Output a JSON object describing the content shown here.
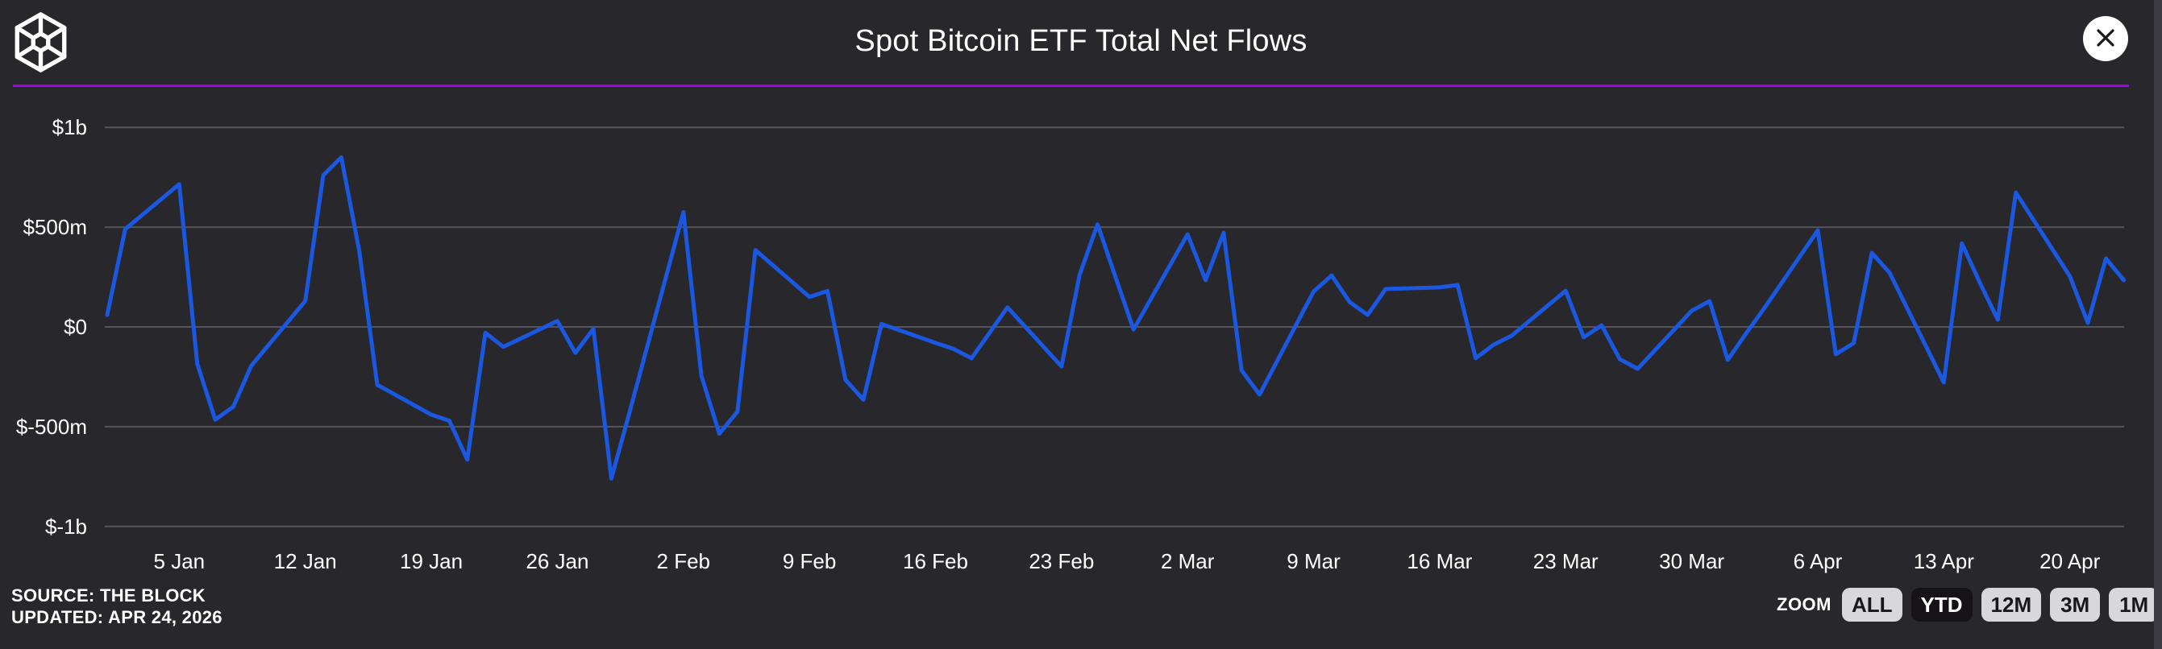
{
  "header": {
    "title": "Spot Bitcoin ETF Total Net Flows",
    "logo_icon": "the-block-cube-logo",
    "close_icon": "x"
  },
  "footer": {
    "source_line1": "SOURCE: THE BLOCK",
    "source_line2": "UPDATED: APR 24, 2026"
  },
  "zoom_controls": {
    "label": "ZOOM",
    "options": [
      {
        "label": "ALL",
        "active": false
      },
      {
        "label": "YTD",
        "active": true
      },
      {
        "label": "12M",
        "active": false
      },
      {
        "label": "3M",
        "active": false
      },
      {
        "label": "1M",
        "active": false
      }
    ]
  },
  "colors": {
    "background": "#28272b",
    "line": "#1b58e2",
    "gridline": "#56555b",
    "divider_purple": "#a403f2",
    "button_bg": "#d8d7db",
    "button_active_bg": "#151318",
    "text": "#ffffff"
  },
  "chart_data": {
    "type": "line",
    "title": "Spot Bitcoin ETF Total Net Flows",
    "series_name": "Total net flows",
    "unit": "$ millions",
    "grid": true,
    "legend": false,
    "x_start_date": "2026-01-01",
    "x_end_date": "2026-04-23",
    "ylim": [
      -1000,
      1000
    ],
    "y_ticks": [
      {
        "value": 1000,
        "label": "$1b"
      },
      {
        "value": 500,
        "label": "$500m"
      },
      {
        "value": 0,
        "label": "$0"
      },
      {
        "value": -500,
        "label": "$-500m"
      },
      {
        "value": -1000,
        "label": "$-1b"
      }
    ],
    "x_ticks": [
      {
        "date": "2026-01-05",
        "label": "5 Jan"
      },
      {
        "date": "2026-01-12",
        "label": "12 Jan"
      },
      {
        "date": "2026-01-19",
        "label": "19 Jan"
      },
      {
        "date": "2026-01-26",
        "label": "26 Jan"
      },
      {
        "date": "2026-02-02",
        "label": "2 Feb"
      },
      {
        "date": "2026-02-09",
        "label": "9 Feb"
      },
      {
        "date": "2026-02-16",
        "label": "16 Feb"
      },
      {
        "date": "2026-02-23",
        "label": "23 Feb"
      },
      {
        "date": "2026-03-02",
        "label": "2 Mar"
      },
      {
        "date": "2026-03-09",
        "label": "9 Mar"
      },
      {
        "date": "2026-03-16",
        "label": "16 Mar"
      },
      {
        "date": "2026-03-23",
        "label": "23 Mar"
      },
      {
        "date": "2026-03-30",
        "label": "30 Mar"
      },
      {
        "date": "2026-04-06",
        "label": "6 Apr"
      },
      {
        "date": "2026-04-13",
        "label": "13 Apr"
      },
      {
        "date": "2026-04-20",
        "label": "20 Apr"
      }
    ],
    "points": [
      {
        "date": "2026-01-01",
        "value": 60
      },
      {
        "date": "2026-01-02",
        "value": 490
      },
      {
        "date": "2026-01-05",
        "value": 715
      },
      {
        "date": "2026-01-06",
        "value": -185
      },
      {
        "date": "2026-01-07",
        "value": -465
      },
      {
        "date": "2026-01-08",
        "value": -400
      },
      {
        "date": "2026-01-09",
        "value": -195
      },
      {
        "date": "2026-01-12",
        "value": 130
      },
      {
        "date": "2026-01-13",
        "value": 760
      },
      {
        "date": "2026-01-14",
        "value": 850
      },
      {
        "date": "2026-01-15",
        "value": 380
      },
      {
        "date": "2026-01-16",
        "value": -290
      },
      {
        "date": "2026-01-19",
        "value": -440
      },
      {
        "date": "2026-01-20",
        "value": -470
      },
      {
        "date": "2026-01-21",
        "value": -665
      },
      {
        "date": "2026-01-22",
        "value": -30
      },
      {
        "date": "2026-01-23",
        "value": -100
      },
      {
        "date": "2026-01-26",
        "value": 30
      },
      {
        "date": "2026-01-27",
        "value": -130
      },
      {
        "date": "2026-01-28",
        "value": -10
      },
      {
        "date": "2026-01-29",
        "value": -760
      },
      {
        "date": "2026-01-30",
        "value": -430
      },
      {
        "date": "2026-02-02",
        "value": 575
      },
      {
        "date": "2026-02-03",
        "value": -245
      },
      {
        "date": "2026-02-04",
        "value": -535
      },
      {
        "date": "2026-02-05",
        "value": -425
      },
      {
        "date": "2026-02-06",
        "value": 385
      },
      {
        "date": "2026-02-09",
        "value": 150
      },
      {
        "date": "2026-02-10",
        "value": 180
      },
      {
        "date": "2026-02-11",
        "value": -265
      },
      {
        "date": "2026-02-12",
        "value": -365
      },
      {
        "date": "2026-02-13",
        "value": 15
      },
      {
        "date": "2026-02-16",
        "value": -80
      },
      {
        "date": "2026-02-17",
        "value": -110
      },
      {
        "date": "2026-02-18",
        "value": -157
      },
      {
        "date": "2026-02-19",
        "value": -30
      },
      {
        "date": "2026-02-20",
        "value": 98
      },
      {
        "date": "2026-02-23",
        "value": -198
      },
      {
        "date": "2026-02-24",
        "value": 260
      },
      {
        "date": "2026-02-25",
        "value": 514
      },
      {
        "date": "2026-02-26",
        "value": 250
      },
      {
        "date": "2026-02-27",
        "value": -13
      },
      {
        "date": "2026-03-02",
        "value": 464
      },
      {
        "date": "2026-03-03",
        "value": 234
      },
      {
        "date": "2026-03-04",
        "value": 472
      },
      {
        "date": "2026-03-05",
        "value": -218
      },
      {
        "date": "2026-03-06",
        "value": -339
      },
      {
        "date": "2026-03-09",
        "value": 177
      },
      {
        "date": "2026-03-10",
        "value": 258
      },
      {
        "date": "2026-03-11",
        "value": 125
      },
      {
        "date": "2026-03-12",
        "value": 60
      },
      {
        "date": "2026-03-13",
        "value": 190
      },
      {
        "date": "2026-03-16",
        "value": 198
      },
      {
        "date": "2026-03-17",
        "value": 210
      },
      {
        "date": "2026-03-18",
        "value": -157
      },
      {
        "date": "2026-03-19",
        "value": -89
      },
      {
        "date": "2026-03-20",
        "value": -44
      },
      {
        "date": "2026-03-23",
        "value": 181
      },
      {
        "date": "2026-03-24",
        "value": -52
      },
      {
        "date": "2026-03-25",
        "value": 8
      },
      {
        "date": "2026-03-26",
        "value": -161
      },
      {
        "date": "2026-03-27",
        "value": -210
      },
      {
        "date": "2026-03-30",
        "value": 81
      },
      {
        "date": "2026-03-31",
        "value": 129
      },
      {
        "date": "2026-04-01",
        "value": -165
      },
      {
        "date": "2026-04-02",
        "value": -35
      },
      {
        "date": "2026-04-03",
        "value": 90
      },
      {
        "date": "2026-04-06",
        "value": 484
      },
      {
        "date": "2026-04-07",
        "value": -137
      },
      {
        "date": "2026-04-08",
        "value": -81
      },
      {
        "date": "2026-04-09",
        "value": 371
      },
      {
        "date": "2026-04-10",
        "value": 270
      },
      {
        "date": "2026-04-13",
        "value": -278
      },
      {
        "date": "2026-04-14",
        "value": 419
      },
      {
        "date": "2026-04-15",
        "value": 222
      },
      {
        "date": "2026-04-16",
        "value": 36
      },
      {
        "date": "2026-04-17",
        "value": 673
      },
      {
        "date": "2026-04-20",
        "value": 254
      },
      {
        "date": "2026-04-21",
        "value": 20
      },
      {
        "date": "2026-04-22",
        "value": 343
      },
      {
        "date": "2026-04-23",
        "value": 234
      }
    ]
  }
}
